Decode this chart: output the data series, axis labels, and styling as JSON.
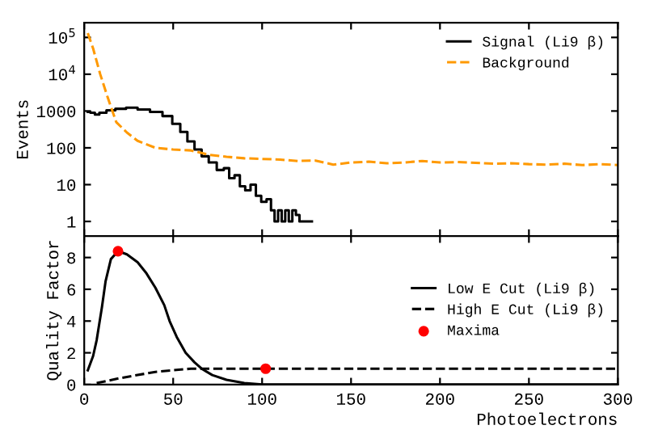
{
  "chart_data": [
    {
      "type": "line",
      "ylabel": "Events",
      "log": "y",
      "xlim": [
        0,
        300
      ],
      "ylim": [
        0.4,
        250000
      ],
      "yticks": [
        1,
        10,
        100,
        1000,
        {
          "value": 10000,
          "label": "10$^{4}$"
        },
        {
          "value": 100000,
          "label": "10$^{5}$"
        }
      ],
      "tick_labels": "y",
      "legend": "top right",
      "grid": false,
      "series": [
        {
          "name": "Signal (Li9 β)",
          "type": "step",
          "color": "#000000",
          "line_style": "solid",
          "x": [
            2,
            5,
            7,
            10,
            15,
            20,
            27,
            33,
            41,
            47,
            52,
            56,
            60,
            64,
            68,
            72,
            77,
            80,
            83,
            86,
            89,
            92,
            95,
            98,
            101,
            104,
            106,
            108,
            110,
            112,
            114,
            116,
            118,
            120,
            122,
            128
          ],
          "values": [
            950,
            900,
            800,
            900,
            1050,
            1150,
            1230,
            1100,
            950,
            730,
            450,
            270,
            150,
            90,
            59,
            40,
            25,
            28,
            15,
            18,
            9,
            7,
            10,
            5,
            3.4,
            4,
            2,
            1,
            2,
            1,
            2,
            1,
            2,
            1.5,
            1,
            1
          ]
        },
        {
          "name": "Background",
          "color": "#ff9900",
          "line_style": "dashed",
          "x": [
            2,
            5,
            9,
            13,
            18,
            24,
            30,
            40,
            50,
            60,
            70,
            80,
            90,
            100,
            110,
            120,
            130,
            140,
            150,
            160,
            170,
            180,
            190,
            200,
            210,
            220,
            230,
            240,
            250,
            260,
            270,
            280,
            290,
            300
          ],
          "values": [
            130000,
            50000,
            10000,
            2500,
            500,
            260,
            155,
            100,
            90,
            85,
            65,
            57,
            52,
            50,
            48,
            44,
            45,
            35,
            40,
            42,
            38,
            40,
            44,
            40,
            41,
            39,
            37,
            38,
            36,
            35,
            37,
            34,
            36,
            34
          ]
        }
      ]
    },
    {
      "type": "line",
      "xlabel": "Photoelectrons",
      "ylabel": "Quality Factor",
      "xlim": [
        0,
        300
      ],
      "ylim": [
        0,
        9.35
      ],
      "xticks": [
        0,
        50,
        100,
        150,
        200,
        250,
        300
      ],
      "yticks": [
        0,
        2,
        4,
        6,
        8
      ],
      "legend": "right",
      "grid": false,
      "series": [
        {
          "name": "Low E Cut (Li9 β)",
          "color": "#000000",
          "line_style": "solid",
          "x": [
            2,
            5,
            7,
            10,
            12,
            15,
            19,
            24,
            30,
            35,
            40,
            45,
            48,
            52,
            57,
            62,
            66,
            72,
            80,
            90,
            100,
            120,
            150,
            200,
            250,
            300
          ],
          "values": [
            0.9,
            1.8,
            2.8,
            4.9,
            6.5,
            7.9,
            8.4,
            8.2,
            7.7,
            7.0,
            6.1,
            5.0,
            4.0,
            3.0,
            2.0,
            1.4,
            1.0,
            0.6,
            0.3,
            0.1,
            0,
            0,
            0,
            0,
            0,
            0
          ]
        },
        {
          "name": "High E Cut (Li9 β)",
          "color": "#000000",
          "line_style": "dashed",
          "x": [
            7,
            20,
            30,
            40,
            50,
            60,
            70,
            100,
            150,
            200,
            250,
            300
          ],
          "values": [
            0.1,
            0.4,
            0.6,
            0.8,
            0.9,
            1.0,
            1.0,
            1.0,
            1.0,
            1.0,
            1.0,
            1.0
          ]
        },
        {
          "name": "Maxima",
          "type": "scatter",
          "color": "#ff0000",
          "marker": "circle",
          "x": [
            19,
            102
          ],
          "values": [
            8.4,
            1.0
          ]
        }
      ]
    }
  ]
}
